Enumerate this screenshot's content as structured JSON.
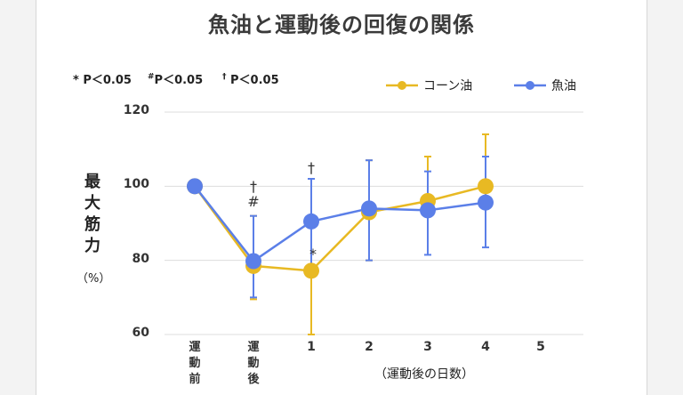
{
  "title": "魚油と運動後の回復の関係",
  "significance_notes": [
    {
      "symbol": "*",
      "text": "P＜0.05"
    },
    {
      "symbol": "#",
      "text": "P＜0.05"
    },
    {
      "symbol": "†",
      "text": "P＜0.05"
    }
  ],
  "ylabel_main": "最大筋力",
  "ylabel_unit": "（%）",
  "xlabel": "（運動後の日数）",
  "colors": {
    "corn_oil": "#e8b923",
    "fish_oil": "#5b7fe8",
    "grid": "#dddddd"
  },
  "chart_data": {
    "type": "line",
    "title": "魚油と運動後の回復の関係",
    "xlabel": "（運動後の日数）",
    "ylabel": "最大筋力（%）",
    "categories": [
      "運動前",
      "運動後",
      "1",
      "2",
      "3",
      "4",
      "5"
    ],
    "yticks": [
      60,
      80,
      100,
      120
    ],
    "ylim": [
      60,
      120
    ],
    "grid": true,
    "legend": "top-right",
    "series": [
      {
        "name": "コーン油",
        "color": "#e8b923",
        "values": [
          100,
          78.5,
          77.2,
          93.0,
          96.0,
          100.0,
          null
        ],
        "error_low": [
          null,
          69.5,
          60,
          80,
          null,
          null,
          null
        ],
        "error_high": [
          null,
          92,
          102,
          107,
          108,
          114,
          null
        ]
      },
      {
        "name": "魚油",
        "color": "#5b7fe8",
        "values": [
          100,
          79.8,
          90.5,
          94.0,
          93.5,
          95.6,
          null
        ],
        "error_low": [
          null,
          70,
          78,
          80,
          81.5,
          83.5,
          null
        ],
        "error_high": [
          null,
          92,
          102,
          107,
          104,
          108,
          null
        ]
      }
    ],
    "annotations": [
      {
        "category": "運動後",
        "text": "†"
      },
      {
        "category": "運動後",
        "text": "#"
      },
      {
        "category": "1",
        "text": "†"
      },
      {
        "category": "1",
        "text": "*"
      }
    ]
  }
}
